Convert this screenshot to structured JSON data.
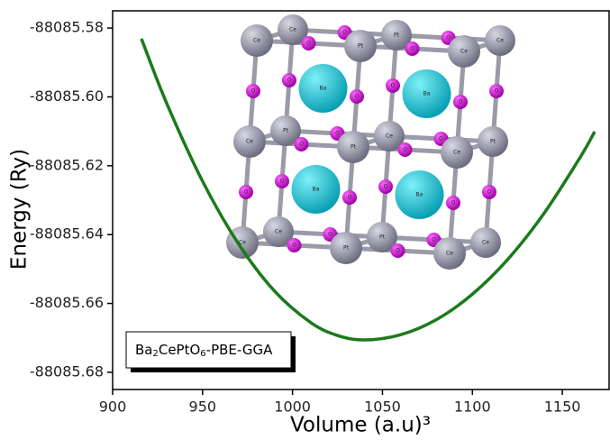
{
  "chart_data": {
    "type": "line",
    "x_label": "Volume (a.u)³",
    "y_label": "Energy (Ry)",
    "x": [
      916,
      930,
      950,
      970,
      990,
      1010,
      1025,
      1040,
      1060,
      1080,
      1100,
      1120,
      1140,
      1160,
      1168
    ],
    "series": [
      {
        "name": "Ba2CePtO6-PBE-GGA",
        "color": "#1b7a1b",
        "values": [
          -88085.5831,
          -88085.6018,
          -88085.6245,
          -88085.6427,
          -88085.6564,
          -88085.6655,
          -88085.6693,
          -88085.6706,
          -88085.6691,
          -88085.6647,
          -88085.6573,
          -88085.647,
          -88085.6337,
          -88085.6175,
          -88085.6101
        ]
      }
    ],
    "xlim": [
      900,
      1176
    ],
    "ylim": [
      -88085.685,
      -88085.575
    ],
    "xticks": [
      900,
      950,
      1000,
      1050,
      1100,
      1150
    ],
    "yticks": [
      {
        "value": -88085.58,
        "label": "-88085.58"
      },
      {
        "value": -88085.6,
        "label": "-88085.60"
      },
      {
        "value": -88085.62,
        "label": "-88085.62"
      },
      {
        "value": -88085.64,
        "label": "-88085.64"
      },
      {
        "value": -88085.66,
        "label": "-88085.66"
      },
      {
        "value": -88085.68,
        "label": "-88085.68"
      }
    ],
    "legend": "lower left",
    "grid": false
  },
  "inset": {
    "ce": "Ce",
    "pt": "Pt",
    "ba": "Ba",
    "o": "O"
  }
}
